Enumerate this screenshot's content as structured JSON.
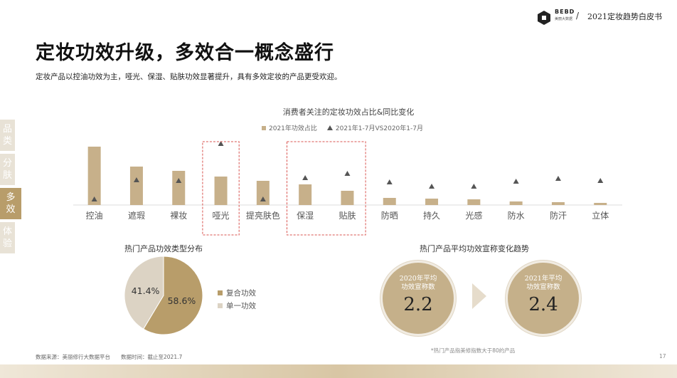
{
  "header": {
    "brand": "BEBD",
    "brand_sub": "美丽大数据",
    "separator": "/",
    "report_title": "2021定妆趋势白皮书"
  },
  "title": "定妆功效升级，多效合一概念盛行",
  "subtitle": "定妆产品以控油功效为主，哑光、保湿、贴肤功效显著提升，具有多效定妆的产品更受欢迎。",
  "side_tabs": [
    {
      "label": "品类",
      "active": false
    },
    {
      "label": "分肤",
      "active": false
    },
    {
      "label": "多效",
      "active": true
    },
    {
      "label": "体验",
      "active": false
    }
  ],
  "chart_data": [
    {
      "type": "bar",
      "title": "消费者关注的定妆功效占比&同比变化",
      "categories": [
        "控油",
        "遮瑕",
        "裸妆",
        "哑光",
        "提亮肤色",
        "保湿",
        "贴肤",
        "防晒",
        "持久",
        "光感",
        "防水",
        "防汗",
        "立体"
      ],
      "series": [
        {
          "name": "2021年功效占比",
          "marker": "bar",
          "values": [
            82,
            54,
            48,
            40,
            34,
            29,
            20,
            10,
            9,
            8,
            5,
            4,
            3
          ]
        },
        {
          "name": "2021年1-7月VS2020年1-7月",
          "marker": "triangle",
          "values": [
            8,
            35,
            34,
            86,
            8,
            38,
            44,
            32,
            26,
            26,
            33,
            37,
            34
          ]
        }
      ],
      "highlighted": [
        "哑光",
        "保湿",
        "贴肤"
      ],
      "colors": {
        "bar": "#c7b08a",
        "triangle": "#555555",
        "highlight_box": "#d9534f"
      }
    },
    {
      "type": "pie",
      "title": "热门产品功效类型分布",
      "categories": [
        "复合功效",
        "单一功效"
      ],
      "values": [
        58.6,
        41.4
      ],
      "labels": [
        "58.6%",
        "41.4%"
      ],
      "colors": [
        "#b89d6a",
        "#dcd3c4"
      ]
    }
  ],
  "trend": {
    "title": "热门产品平均功效宣称变化趋势",
    "items": [
      {
        "label_line1": "2020年平均",
        "label_line2": "功效宣称数",
        "value": "2.2"
      },
      {
        "label_line1": "2021年平均",
        "label_line2": "功效宣称数",
        "value": "2.4"
      }
    ]
  },
  "footnote": "*热门产品指美修指数大于80的产品",
  "source": "数据来源：美丽修行大数据平台",
  "data_time": "数据时间：截止至2021.7",
  "page_number": "17"
}
